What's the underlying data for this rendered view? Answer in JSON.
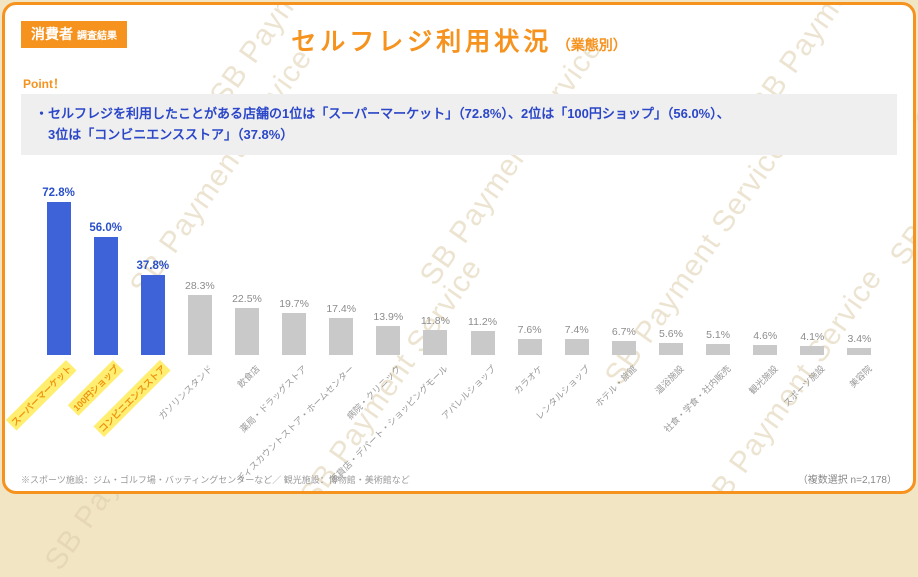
{
  "badge": {
    "main": "消費者",
    "sub": "調査結果"
  },
  "title": {
    "main": "セルフレジ利用状況",
    "suffix": "（業態別）"
  },
  "point": {
    "label": "Point！",
    "line1": "・セルフレジを利用したことがある店舗の1位は「スーパーマーケット」（72.8%）、2位は「100円ショップ」（56.0%）、",
    "line2": "3位は「コンビニエンスストア」（37.8%）"
  },
  "watermark": "SB Payment Service",
  "footnotes": {
    "left": "※スポーツ施設：ジム・ゴルフ場・バッティングセンターなど／ 観光施設：博物館・美術館など",
    "right": "（複数選択 n=2,178）"
  },
  "colors": {
    "accent_orange": "#f6921e",
    "bar_highlight": "#3e63d8",
    "bar_default": "#c9c9c9",
    "value_highlight_text": "#2a50c8",
    "value_default_text": "#8c8c8c",
    "point_text": "#2b46c8",
    "highlight_label_bg": "#ffee70",
    "highlight_label_text": "#ef9310",
    "watermark": "#decfad",
    "page_bg": "#f2e5c4",
    "box_bg": "#efefef"
  },
  "chart_data": {
    "type": "bar",
    "title": "セルフレジ利用状況（業態別）",
    "categories": [
      "スーパーマーケット",
      "100円ショップ",
      "コンビニエンスストア",
      "ガソリンスタンド",
      "飲食店",
      "薬局・ドラッグストア",
      "ディスカウントストア・ホームセンター",
      "病院・クリニック",
      "百貨店・デパート・ショッピングモール",
      "アパレルショップ",
      "カラオケ",
      "レンタルショップ",
      "ホテル・旅館",
      "温浴施設",
      "社食・学食・社内販売",
      "観光施設",
      "スポーツ施設",
      "美容院"
    ],
    "values": [
      72.8,
      56.0,
      37.8,
      28.3,
      22.5,
      19.7,
      17.4,
      13.9,
      11.8,
      11.2,
      7.6,
      7.4,
      6.7,
      5.6,
      5.1,
      4.6,
      4.1,
      3.4
    ],
    "value_labels": [
      "72.8%",
      "56.0%",
      "37.8%",
      "28.3%",
      "22.5%",
      "19.7%",
      "17.4%",
      "13.9%",
      "11.8%",
      "11.2%",
      "7.6%",
      "7.4%",
      "6.7%",
      "5.6%",
      "5.1%",
      "4.6%",
      "4.1%",
      "3.4%"
    ],
    "highlight_count": 3,
    "xlabel": "",
    "ylabel": "",
    "ylim": [
      0,
      80
    ],
    "grid": false,
    "legend": false,
    "sample_note": "複数選択 n=2,178"
  }
}
